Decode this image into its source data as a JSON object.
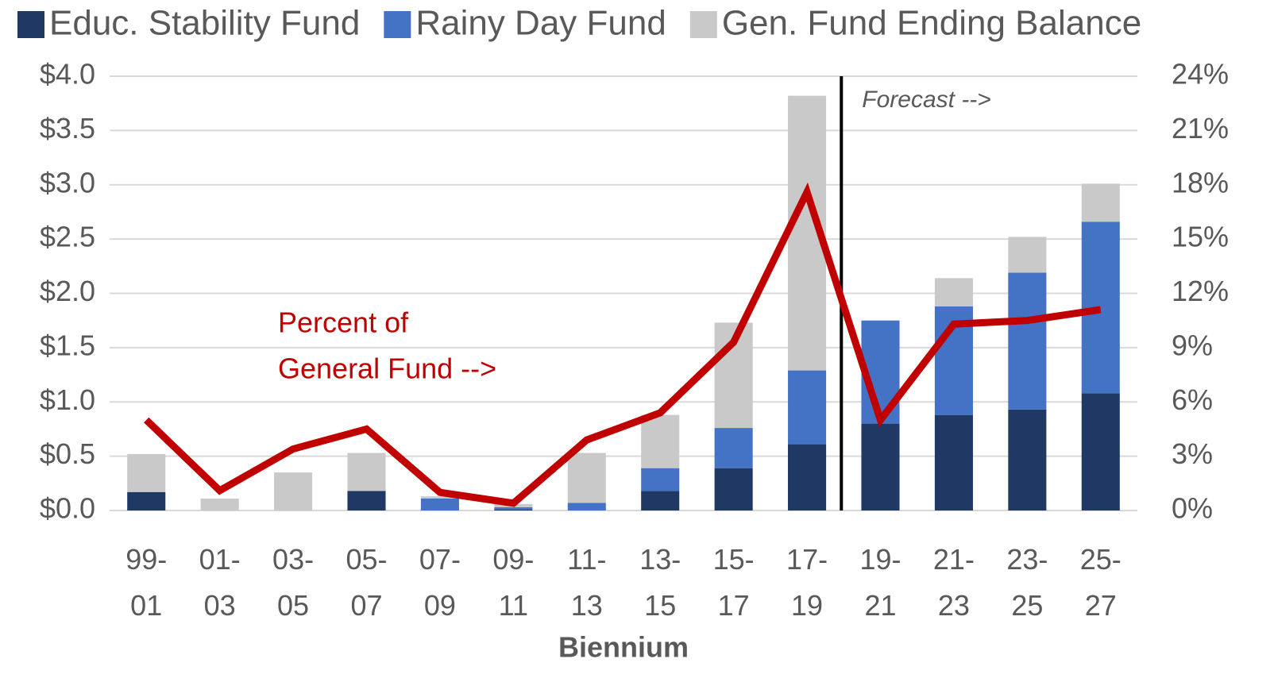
{
  "chart_data": {
    "type": "bar",
    "stacked": true,
    "x_label": "Biennium",
    "categories": [
      "99-01",
      "01-03",
      "03-05",
      "05-07",
      "07-09",
      "09-11",
      "11-13",
      "13-15",
      "15-17",
      "17-19",
      "19-21",
      "21-23",
      "23-25",
      "25-27"
    ],
    "series": [
      {
        "name": "Educ. Stability Fund",
        "type": "bar",
        "color": "#1f3864",
        "values": [
          0.17,
          0,
          0,
          0.18,
          0,
          0.01,
          0,
          0.18,
          0.39,
          0.61,
          0.8,
          0.88,
          0.93,
          1.08
        ]
      },
      {
        "name": "Rainy Day Fund",
        "type": "bar",
        "color": "#4472c4",
        "values": [
          0,
          0,
          0,
          0,
          0.11,
          0.02,
          0.07,
          0.21,
          0.37,
          0.68,
          0.95,
          1.0,
          1.26,
          1.58
        ]
      },
      {
        "name": "Gen. Fund Ending Balance",
        "type": "bar",
        "color": "#c9c9c9",
        "values": [
          0.35,
          0.11,
          0.35,
          0.35,
          0.02,
          0.03,
          0.46,
          0.49,
          0.97,
          2.53,
          0,
          0.26,
          0.33,
          0.35
        ]
      },
      {
        "type": "line",
        "axis": "y2",
        "color": "#c00000",
        "values": [
          5.0,
          1.1,
          3.4,
          4.5,
          1.0,
          0.4,
          3.9,
          5.4,
          9.3,
          17.6,
          5.0,
          10.3,
          10.5,
          11.1
        ]
      }
    ],
    "line_label": [
      "Percent of",
      "General Fund -->"
    ],
    "forecast_label": "Forecast -->",
    "ylim": [
      0,
      4
    ],
    "yticks": [
      {
        "value": 0,
        "label": "$0.0"
      },
      {
        "value": 0.5,
        "label": "$0.5"
      },
      {
        "value": 1,
        "label": "$1.0"
      },
      {
        "value": 1.5,
        "label": "$1.5"
      },
      {
        "value": 2,
        "label": "$2.0"
      },
      {
        "value": 2.5,
        "label": "$2.5"
      },
      {
        "value": 3,
        "label": "$3.0"
      },
      {
        "value": 3.5,
        "label": "$3.5"
      },
      {
        "value": 4,
        "label": "$4.0"
      }
    ],
    "y2lim": [
      0,
      24
    ],
    "y2ticks": [
      {
        "value": 0,
        "label": "0%"
      },
      {
        "value": 3,
        "label": "3%"
      },
      {
        "value": 6,
        "label": "6%"
      },
      {
        "value": 9,
        "label": "9%"
      },
      {
        "value": 12,
        "label": "12%"
      },
      {
        "value": 15,
        "label": "15%"
      },
      {
        "value": 18,
        "label": "18%"
      },
      {
        "value": 21,
        "label": "21%"
      },
      {
        "value": 24,
        "label": "24%"
      }
    ],
    "grid": true
  }
}
